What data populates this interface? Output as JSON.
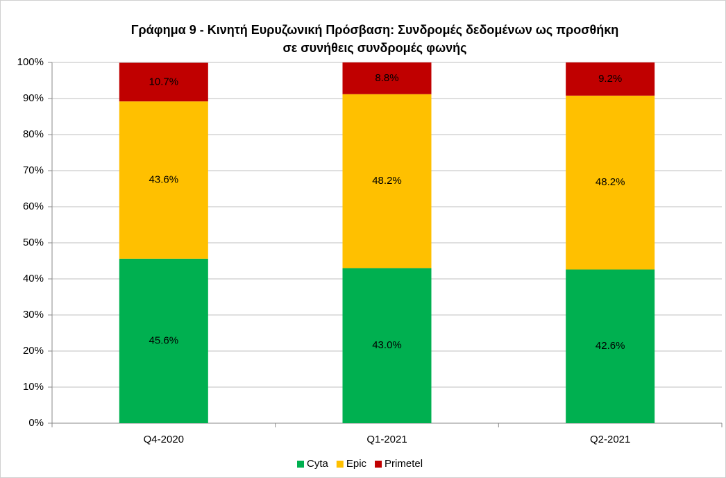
{
  "chart_data": {
    "type": "stacked_bar",
    "title": [
      "Γράφημα 9 - Κινητή Ευρυζωνική Πρόσβαση: Συνδρομές δεδομένων ως προσθήκη",
      "σε συνήθεις συνδρομές φωνής"
    ],
    "categories": [
      "Q4-2020",
      "Q1-2021",
      "Q2-2021"
    ],
    "series": [
      {
        "name": "Cyta",
        "color": "#00b050",
        "values": [
          45.6,
          43.0,
          42.6
        ],
        "value_labels": [
          "45.6%",
          "43.0%",
          "42.6%"
        ]
      },
      {
        "name": "Epic",
        "color": "#ffc000",
        "values": [
          43.6,
          48.2,
          48.2
        ],
        "value_labels": [
          "43.6%",
          "48.2%",
          "48.2%"
        ]
      },
      {
        "name": "Primetel",
        "color": "#c00000",
        "values": [
          10.7,
          8.8,
          9.2
        ],
        "value_labels": [
          "10.7%",
          "8.8%",
          "9.2%"
        ]
      }
    ],
    "ylim": [
      0,
      100
    ],
    "yticks": [
      {
        "value": 0,
        "label": "0%"
      },
      {
        "value": 10,
        "label": "10%"
      },
      {
        "value": 20,
        "label": "20%"
      },
      {
        "value": 30,
        "label": "30%"
      },
      {
        "value": 40,
        "label": "40%"
      },
      {
        "value": 50,
        "label": "50%"
      },
      {
        "value": 60,
        "label": "60%"
      },
      {
        "value": 70,
        "label": "70%"
      },
      {
        "value": 80,
        "label": "80%"
      },
      {
        "value": 90,
        "label": "90%"
      },
      {
        "value": 100,
        "label": "100%"
      }
    ],
    "grid": true,
    "legend": "bottom"
  }
}
